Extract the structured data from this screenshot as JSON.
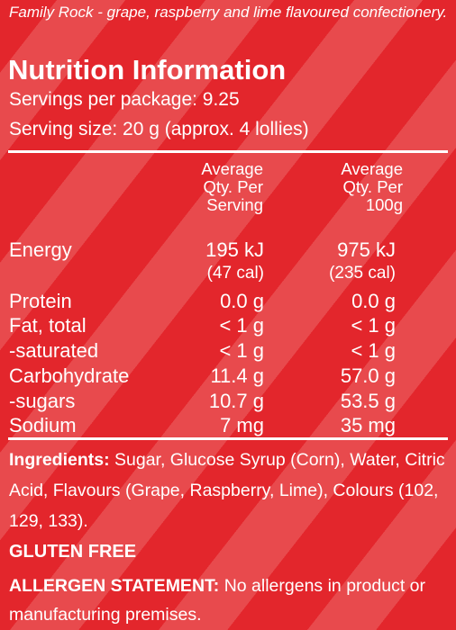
{
  "product_description": "Family Rock - grape, raspberry and lime flavoured confectionery.",
  "title": "Nutrition Information",
  "servings_per_package": "Servings per package: 9.25",
  "serving_size": "Serving size: 20 g (approx. 4 lollies)",
  "headers": {
    "per_serving_1": "Average",
    "per_serving_2": "Qty. Per",
    "per_serving_3": "Serving",
    "per_100g_1": "Average",
    "per_100g_2": "Qty. Per",
    "per_100g_3": "100g"
  },
  "energy": {
    "label": "Energy",
    "per_serving": "195 kJ",
    "per_100g": "975 kJ",
    "per_serving_cal": "(47 cal)",
    "per_100g_cal": "(235 cal)"
  },
  "nutrients": [
    {
      "label": "Protein",
      "per_serving": "0.0 g",
      "per_100g": "0.0 g"
    },
    {
      "label": "Fat, total",
      "per_serving": "< 1 g",
      "per_100g": "< 1 g"
    },
    {
      "label": "-saturated",
      "per_serving": "< 1 g",
      "per_100g": "< 1 g"
    },
    {
      "label": "Carbohydrate",
      "per_serving": "11.4 g",
      "per_100g": "57.0 g"
    },
    {
      "label": "-sugars",
      "per_serving": "10.7 g",
      "per_100g": "53.5 g"
    },
    {
      "label": "Sodium",
      "per_serving": "7 mg",
      "per_100g": "35 mg"
    }
  ],
  "ingredients": {
    "label": "Ingredients:",
    "text": " Sugar, Glucose Syrup (Corn), Water, Citric Acid, Flavours (Grape, Raspberry, Lime), Colours (102, 129, 133)."
  },
  "gluten_free": "GLUTEN FREE",
  "allergen": {
    "label": "ALLERGEN STATEMENT:",
    "text": " No allergens in product or manufacturing premises."
  },
  "colors": {
    "background": "#e3262c",
    "stripe": "#e84a4d",
    "text": "#ffffff"
  }
}
